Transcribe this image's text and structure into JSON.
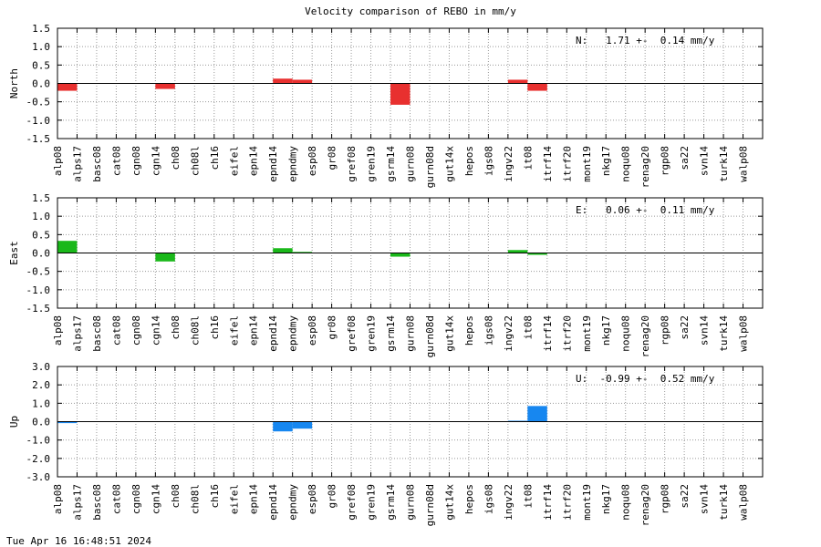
{
  "title": "Velocity comparison of REBO in mm/y",
  "timestamp": "Tue Apr 16 16:48:51 2024",
  "chart_data": [
    {
      "type": "bar",
      "ylabel": "North",
      "ylim": [
        -1.5,
        1.5
      ],
      "yticks": [
        "1.5",
        "1.0",
        "0.5",
        "0.0",
        "-0.5",
        "-1.0",
        "-1.5"
      ],
      "grid": true,
      "summary": "N:   1.71 +-  0.14 mm/y",
      "color": "#e8302f",
      "categories": [
        "alp08",
        "alps17",
        "basc08",
        "cat08",
        "cgn08",
        "cgn14",
        "ch08",
        "ch08l",
        "ch16",
        "eifel",
        "epn14",
        "epnd14",
        "epndmy",
        "esp08",
        "gr08",
        "gref08",
        "gren19",
        "gsrm14",
        "gurn08",
        "gurn08d",
        "gut14x",
        "hepos",
        "igs08",
        "ingv22",
        "it08",
        "itrf14",
        "itrf20",
        "mont19",
        "nkg17",
        "noqu08",
        "renag20",
        "rgp08",
        "sa22",
        "svn14",
        "turk14",
        "walp08"
      ],
      "values": [
        -0.2,
        0,
        0,
        0,
        0,
        -0.15,
        0,
        0,
        0,
        0,
        0,
        0.13,
        0.1,
        0,
        0,
        0,
        0,
        -0.58,
        0,
        0,
        0,
        0,
        0,
        0.1,
        -0.2,
        0,
        0,
        0,
        0,
        0,
        0,
        0,
        0,
        0,
        0,
        0
      ]
    },
    {
      "type": "bar",
      "ylabel": "East",
      "ylim": [
        -1.5,
        1.5
      ],
      "yticks": [
        "1.5",
        "1.0",
        "0.5",
        "0.0",
        "-0.5",
        "-1.0",
        "-1.5"
      ],
      "grid": true,
      "summary": "E:   0.06 +-  0.11 mm/y",
      "color": "#1ab81a",
      "categories": [
        "alp08",
        "alps17",
        "basc08",
        "cat08",
        "cgn08",
        "cgn14",
        "ch08",
        "ch08l",
        "ch16",
        "eifel",
        "epn14",
        "epnd14",
        "epndmy",
        "esp08",
        "gr08",
        "gref08",
        "gren19",
        "gsrm14",
        "gurn08",
        "gurn08d",
        "gut14x",
        "hepos",
        "igs08",
        "ingv22",
        "it08",
        "itrf14",
        "itrf20",
        "mont19",
        "nkg17",
        "noqu08",
        "renag20",
        "rgp08",
        "sa22",
        "svn14",
        "turk14",
        "walp08"
      ],
      "values": [
        0.33,
        0,
        0,
        0,
        0,
        -0.23,
        0,
        0,
        0,
        0,
        0,
        0.13,
        0.03,
        0,
        0,
        0,
        0,
        -0.1,
        0,
        0,
        0,
        0,
        0,
        0.08,
        -0.05,
        0,
        0,
        0,
        0,
        0,
        0,
        0,
        0,
        0,
        0,
        0
      ]
    },
    {
      "type": "bar",
      "ylabel": "Up",
      "ylim": [
        -3.0,
        3.0
      ],
      "yticks": [
        "3.0",
        "2.0",
        "1.0",
        "0.0",
        "-1.0",
        "-2.0",
        "-3.0"
      ],
      "grid": true,
      "summary": "U:  -0.99 +-  0.52 mm/y",
      "color": "#1787f0",
      "categories": [
        "alp08",
        "alps17",
        "basc08",
        "cat08",
        "cgn08",
        "cgn14",
        "ch08",
        "ch08l",
        "ch16",
        "eifel",
        "epn14",
        "epnd14",
        "epndmy",
        "esp08",
        "gr08",
        "gref08",
        "gren19",
        "gsrm14",
        "gurn08",
        "gurn08d",
        "gut14x",
        "hepos",
        "igs08",
        "ingv22",
        "it08",
        "itrf14",
        "itrf20",
        "mont19",
        "nkg17",
        "noqu08",
        "renag20",
        "rgp08",
        "sa22",
        "svn14",
        "turk14",
        "walp08"
      ],
      "values": [
        -0.08,
        0,
        0,
        0,
        0,
        0,
        0,
        0,
        0,
        0,
        0,
        -0.53,
        -0.38,
        0,
        0,
        0,
        0,
        0,
        0,
        0,
        0,
        0,
        0,
        0.05,
        0.85,
        0,
        0,
        0,
        0,
        0,
        0,
        0,
        0,
        0,
        0,
        0
      ]
    }
  ]
}
